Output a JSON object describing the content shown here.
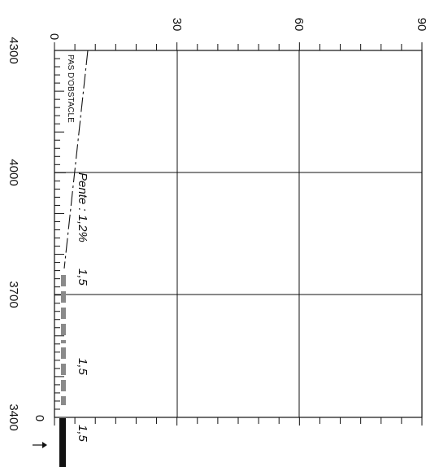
{
  "chart_data": {
    "type": "diagram",
    "left_axis": {
      "tick_labels": [
        "4300",
        "4000",
        "3700",
        "3400"
      ],
      "values": [
        4300,
        4000,
        3700,
        3400
      ],
      "range": [
        4300,
        3400
      ]
    },
    "top_axis": {
      "tick_labels": [
        "0",
        "30",
        "60",
        "90"
      ],
      "values": [
        0,
        30,
        60,
        90
      ],
      "range": [
        0,
        90
      ]
    },
    "bottom_zero_label": "0",
    "annotations": {
      "no_obstacle": "PAS D'OBSTACLE",
      "slope": "Pente : 1,2%",
      "seg1": "1,5",
      "seg2": "1,5",
      "seg3": "1,5"
    },
    "grid": true,
    "colors": {
      "line": "#111111",
      "segment_gray": "#8a8a8a",
      "segment_black": "#111111"
    },
    "icons": [
      "arrow-right-icon"
    ]
  }
}
